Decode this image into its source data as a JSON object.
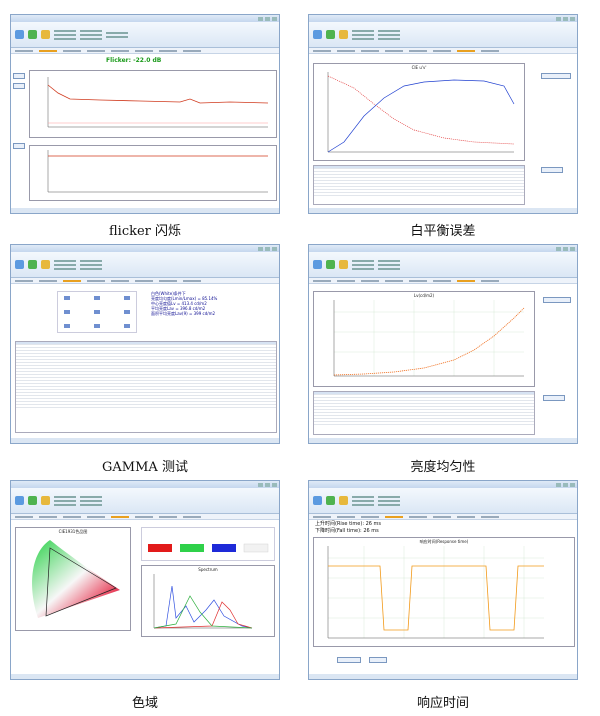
{
  "captions": {
    "flicker": "flicker 闪烁",
    "white_balance": "白平衡误差",
    "gamma": "GAMMA 测试",
    "uniformity": "亮度均匀性",
    "gamut": "色域",
    "response": "响应时间"
  },
  "flicker": {
    "readout": "Flicker: -22.0 dB"
  },
  "gamut": {
    "plot_title": "CIE1931色品图",
    "spectrum_title": "Spectrum"
  },
  "uniformity": {
    "plot_title": "Lv(cd/m2)"
  },
  "white_balance": {
    "plot_title": "CIE u'v'"
  },
  "response": {
    "rise": "上升时间(Rise time): 26 ms",
    "fall": "下降时间(Fall time): 26 ms",
    "plot_title": "响应时间(Response time)"
  },
  "gamma": {
    "lines": [
      "白色(White)条件下",
      "亮度均匀度(Lmin/Lmax) = 85.14%",
      "中心亮度值Lv = 413.4 cd/m2",
      "平均亮度Lav = 396.8 cd/m2",
      "面积平均亮度Lav(9) = 399 cd/m2"
    ]
  },
  "colors": {
    "ui_frame": "#8aa6c9",
    "ribbon": "#dbe7f5",
    "flicker_green": "#1a9a1a"
  }
}
